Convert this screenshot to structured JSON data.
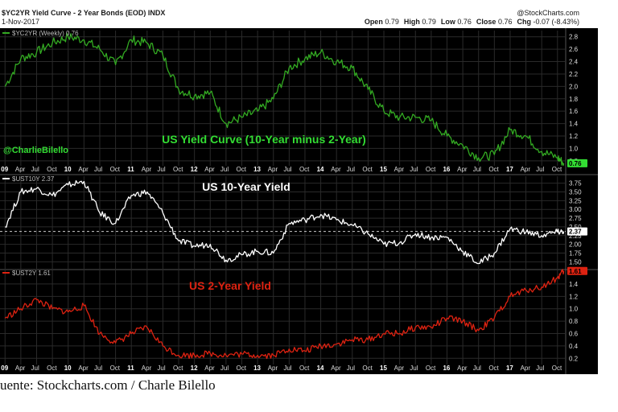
{
  "header": {
    "symbol_title": "$YC2YR Yield Curve - 2 Year Bonds (EOD) INDX",
    "date": "1-Nov-2017",
    "brand": "@StockCharts.com",
    "ohlc_labels": [
      "Open",
      "High",
      "Low",
      "Close",
      "Chg"
    ],
    "ohlc_values": [
      "0.79",
      "0.79",
      "0.76",
      "0.76",
      "-0.07 (-8.43%)"
    ]
  },
  "caption": "uente: Stockcharts.com / Charle Bilello",
  "x_axis": {
    "labels": [
      "09",
      "Apr",
      "Jul",
      "Oct",
      "10",
      "Apr",
      "Jul",
      "Oct",
      "11",
      "Apr",
      "Jul",
      "Oct",
      "12",
      "Apr",
      "Jul",
      "Oct",
      "13",
      "Apr",
      "Jul",
      "Oct",
      "14",
      "Apr",
      "Jul",
      "Oct",
      "15",
      "Apr",
      "Jul",
      "Oct",
      "16",
      "Apr",
      "Jul",
      "Oct",
      "17",
      "Apr",
      "Jul",
      "Oct"
    ]
  },
  "colors": {
    "background": "#000000",
    "green": "#33aa22",
    "green_text": "#33dd33",
    "white": "#ffffff",
    "red": "#dd2211",
    "grid": "#2a2a2a"
  },
  "chart_data": [
    {
      "type": "line",
      "legend": "$YC2YR (Weekly) 0.76",
      "title": "US Yield Curve (10-Year minus 2-Year)",
      "annotation": "@CharlieBilello",
      "last_value": "0.76",
      "ylim": [
        0.72,
        2.9
      ],
      "yticks": [
        "2.8",
        "2.6",
        "2.4",
        "2.2",
        "2.0",
        "1.8",
        "1.6",
        "1.4",
        "1.2",
        "1.0",
        "0.8"
      ],
      "x": [
        2009.0,
        2009.25,
        2009.5,
        2009.75,
        2010.0,
        2010.25,
        2010.5,
        2010.75,
        2011.0,
        2011.25,
        2011.5,
        2011.75,
        2012.0,
        2012.25,
        2012.5,
        2012.75,
        2013.0,
        2013.25,
        2013.5,
        2013.75,
        2014.0,
        2014.25,
        2014.5,
        2014.75,
        2015.0,
        2015.25,
        2015.5,
        2015.75,
        2016.0,
        2016.25,
        2016.5,
        2016.75,
        2017.0,
        2017.25,
        2017.5,
        2017.75,
        2017.85
      ],
      "values": [
        2.0,
        2.45,
        2.55,
        2.7,
        2.8,
        2.75,
        2.6,
        2.35,
        2.75,
        2.7,
        2.5,
        1.95,
        1.85,
        1.9,
        1.4,
        1.5,
        1.6,
        1.8,
        2.3,
        2.45,
        2.55,
        2.4,
        2.3,
        1.95,
        1.6,
        1.5,
        1.5,
        1.45,
        1.2,
        1.05,
        0.85,
        0.9,
        1.3,
        1.2,
        0.95,
        0.85,
        0.76
      ]
    },
    {
      "type": "line",
      "legend": "$UST10Y 2.37",
      "title": "US 10-Year Yield",
      "last_value": "2.37",
      "reference_line": 2.37,
      "ylim": [
        1.3,
        3.95
      ],
      "yticks": [
        "3.75",
        "3.50",
        "3.25",
        "3.00",
        "2.75",
        "2.50",
        "2.25",
        "2.00",
        "1.75",
        "1.50"
      ],
      "x": [
        2009.0,
        2009.25,
        2009.5,
        2009.75,
        2010.0,
        2010.25,
        2010.5,
        2010.75,
        2011.0,
        2011.25,
        2011.5,
        2011.75,
        2012.0,
        2012.25,
        2012.5,
        2012.75,
        2013.0,
        2013.25,
        2013.5,
        2013.75,
        2014.0,
        2014.25,
        2014.5,
        2014.75,
        2015.0,
        2015.25,
        2015.5,
        2015.75,
        2016.0,
        2016.25,
        2016.5,
        2016.75,
        2017.0,
        2017.25,
        2017.5,
        2017.75,
        2017.85
      ],
      "values": [
        2.5,
        3.5,
        3.6,
        3.4,
        3.7,
        3.8,
        2.9,
        2.6,
        3.4,
        3.5,
        2.9,
        2.1,
        1.95,
        2.0,
        1.55,
        1.7,
        1.8,
        1.75,
        2.6,
        2.7,
        2.85,
        2.7,
        2.55,
        2.3,
        2.0,
        2.05,
        2.3,
        2.2,
        2.2,
        1.8,
        1.45,
        1.75,
        2.45,
        2.35,
        2.25,
        2.35,
        2.37
      ]
    },
    {
      "type": "line",
      "legend": "$UST2Y 1.61",
      "title": "US 2-Year Yield",
      "last_value": "1.61",
      "ylim": [
        0.1,
        1.62
      ],
      "yticks": [
        "1.4",
        "1.2",
        "1.0",
        "0.8",
        "0.6",
        "0.4",
        "0.2"
      ],
      "x": [
        2009.0,
        2009.25,
        2009.5,
        2009.75,
        2010.0,
        2010.25,
        2010.5,
        2010.75,
        2011.0,
        2011.25,
        2011.5,
        2011.75,
        2012.0,
        2012.25,
        2012.5,
        2012.75,
        2013.0,
        2013.25,
        2013.5,
        2013.75,
        2014.0,
        2014.25,
        2014.5,
        2014.75,
        2015.0,
        2015.25,
        2015.5,
        2015.75,
        2016.0,
        2016.25,
        2016.5,
        2016.75,
        2017.0,
        2017.25,
        2017.5,
        2017.75,
        2017.85
      ],
      "values": [
        0.85,
        1.0,
        1.15,
        1.0,
        0.95,
        1.05,
        0.6,
        0.45,
        0.6,
        0.7,
        0.4,
        0.25,
        0.25,
        0.28,
        0.25,
        0.27,
        0.25,
        0.25,
        0.35,
        0.32,
        0.4,
        0.43,
        0.5,
        0.5,
        0.6,
        0.6,
        0.7,
        0.7,
        0.85,
        0.8,
        0.65,
        0.85,
        1.2,
        1.3,
        1.35,
        1.5,
        1.61
      ]
    }
  ]
}
